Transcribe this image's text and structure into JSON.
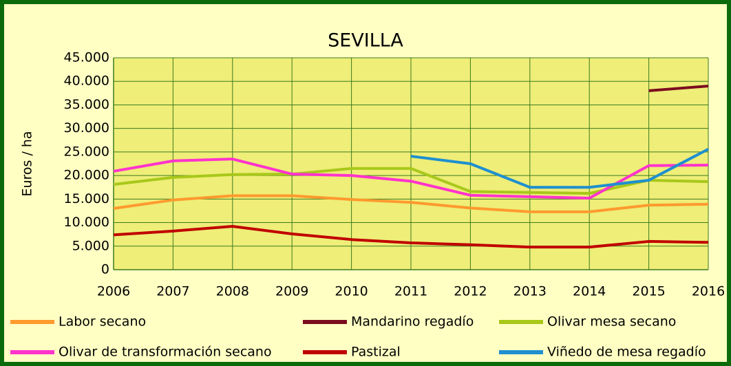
{
  "chart_data": {
    "type": "line",
    "title": "SEVILLA",
    "y_label": "Euros / ha",
    "categories": [
      "2006",
      "2007",
      "2008",
      "2009",
      "2010",
      "2011",
      "2012",
      "2013",
      "2014",
      "2015",
      "2016"
    ],
    "series": [
      {
        "name": "Labor secano",
        "color": "#ff9a2e",
        "values": [
          13000,
          14800,
          15700,
          15700,
          14900,
          14300,
          13100,
          12300,
          12300,
          13700,
          13900
        ]
      },
      {
        "name": "Mandarino regadío",
        "color": "#7b0c1e",
        "values": [
          null,
          null,
          null,
          null,
          null,
          null,
          null,
          null,
          null,
          38000,
          39000
        ]
      },
      {
        "name": "Olivar mesa secano",
        "color": "#a8c81a",
        "values": [
          18100,
          19600,
          20200,
          20300,
          21500,
          21500,
          16600,
          16400,
          16200,
          19000,
          18700
        ]
      },
      {
        "name": "Olivar de transformación secano",
        "color": "#ff33cc",
        "values": [
          20900,
          23100,
          23500,
          20300,
          20000,
          18800,
          15800,
          15500,
          15200,
          22100,
          22200
        ]
      },
      {
        "name": "Pastizal",
        "color": "#c00000",
        "values": [
          7400,
          8200,
          9200,
          7600,
          6400,
          5700,
          5300,
          4800,
          4800,
          6000,
          5800
        ]
      },
      {
        "name": "Viñedo de mesa regadío",
        "color": "#1f8fcf",
        "values": [
          null,
          null,
          null,
          null,
          null,
          24100,
          22500,
          17500,
          17500,
          19000,
          25600
        ]
      }
    ],
    "ylim": [
      0,
      45000
    ],
    "yticks": [
      0,
      {
        "value": 5000,
        "label": "5.000"
      },
      {
        "value": 10000,
        "label": "10.000"
      },
      {
        "value": 15000,
        "label": "15.000"
      },
      {
        "value": 20000,
        "label": "20.000"
      },
      {
        "value": 25000,
        "label": "25.000"
      },
      {
        "value": 30000,
        "label": "30.000"
      },
      {
        "value": 35000,
        "label": "35.000"
      },
      {
        "value": 40000,
        "label": "40.000"
      },
      {
        "value": 45000,
        "label": "45.000"
      }
    ],
    "grid": true
  }
}
